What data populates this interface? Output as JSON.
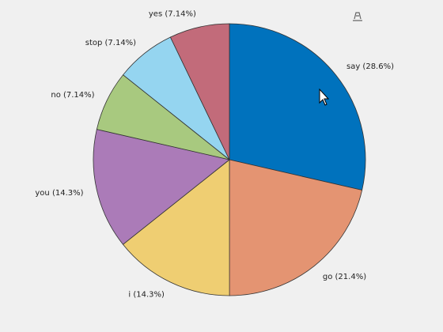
{
  "chart_data": {
    "type": "pie",
    "values": [
      28.6,
      21.4,
      14.3,
      14.3,
      7.14,
      7.14,
      7.14
    ],
    "value_labels": [
      "say (28.6%)",
      "go (21.4%)",
      "i (14.3%)",
      "you (14.3%)",
      "no (7.14%)",
      "stop (7.14%)",
      "yes (7.14%)"
    ],
    "colors": [
      "#0072bd",
      "#e49472",
      "#efce72",
      "#ab7bb8",
      "#a8c97f",
      "#95d5f0",
      "#c26b7a"
    ]
  }
}
